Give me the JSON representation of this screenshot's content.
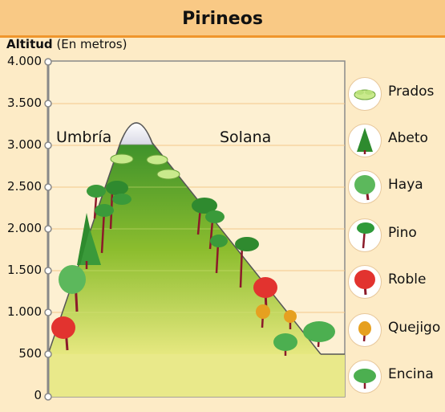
{
  "title": "Pirineos",
  "axis": {
    "label_bold": "Altitud",
    "label_rest": "(En metros)",
    "ticks": [
      "0",
      "500",
      "1.000",
      "1.500",
      "2.000",
      "2.500",
      "3.000",
      "3.500",
      "4.000"
    ]
  },
  "regions": {
    "left": "Umbría",
    "right": "Solana"
  },
  "legend": [
    {
      "label": "Prados",
      "icon": "meadow-icon",
      "color": "#b8e07a"
    },
    {
      "label": "Abeto",
      "icon": "fir-icon",
      "color": "#2e8b2e"
    },
    {
      "label": "Haya",
      "icon": "beech-icon",
      "color": "#5cb85c"
    },
    {
      "label": "Pino",
      "icon": "pine-icon",
      "color": "#2f9a3a"
    },
    {
      "label": "Roble",
      "icon": "oak-icon",
      "color": "#e2332f"
    },
    {
      "label": "Quejigo",
      "icon": "gall-oak-icon",
      "color": "#e6a020"
    },
    {
      "label": "Encina",
      "icon": "holm-oak-icon",
      "color": "#4caf50"
    }
  ]
}
